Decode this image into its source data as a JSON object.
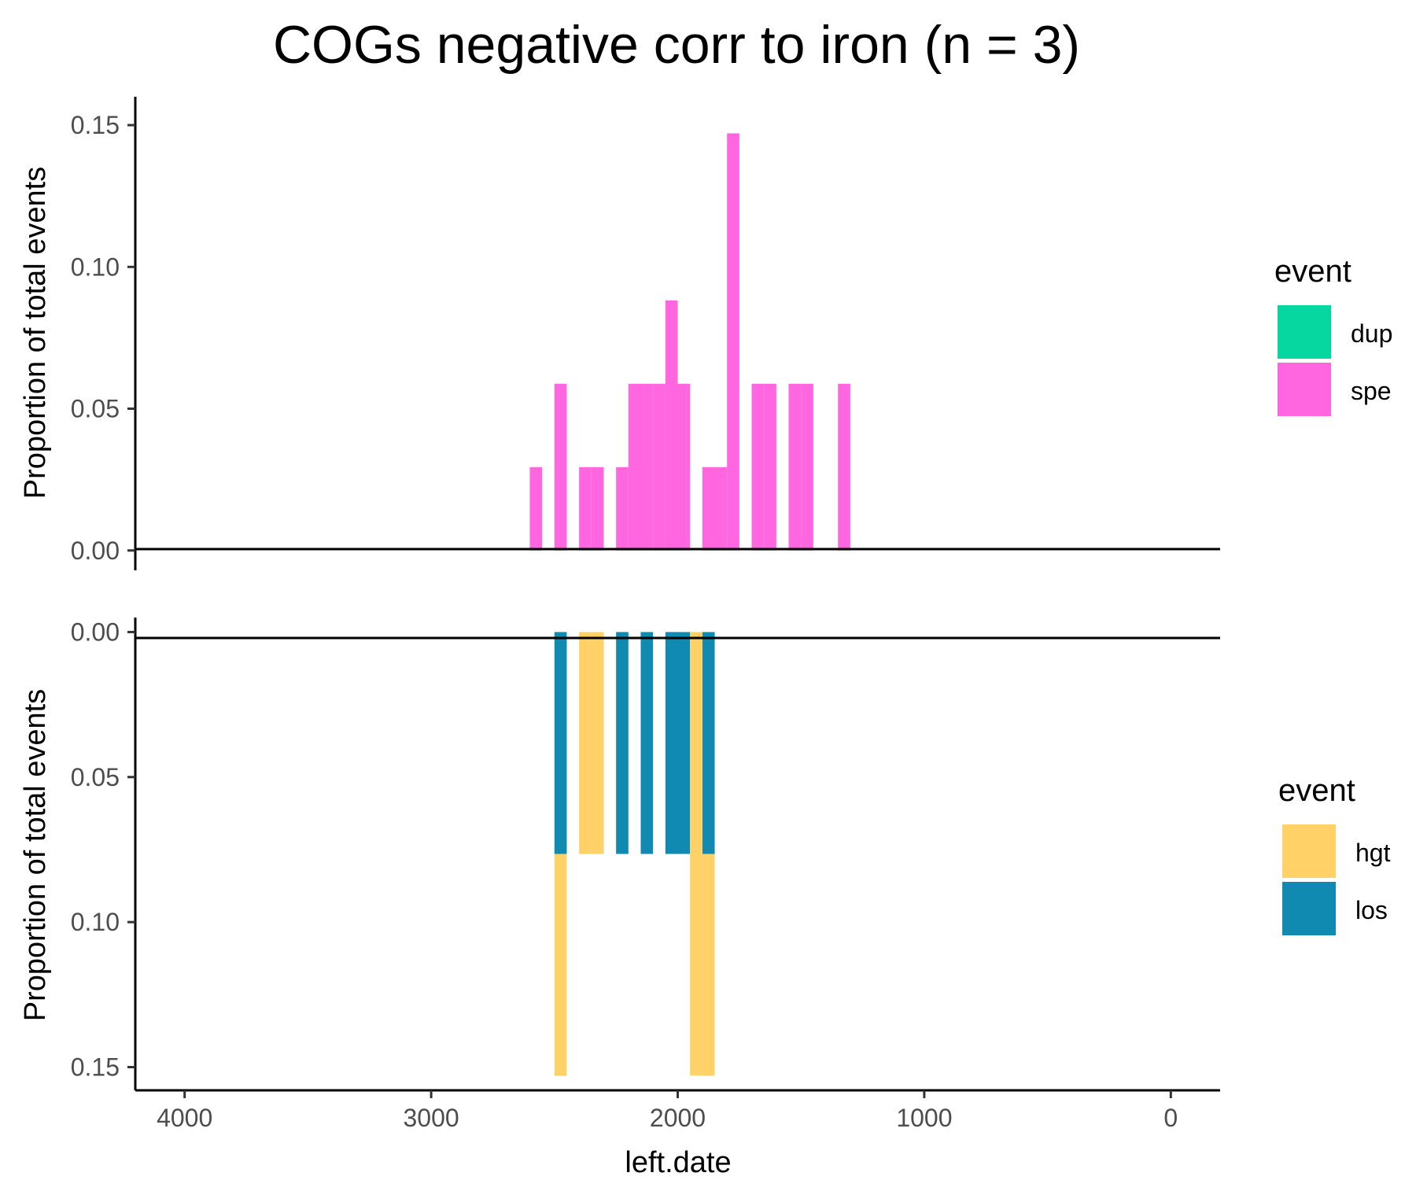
{
  "chart_data": {
    "type": "bar",
    "title": "COGs negative corr to iron (n = 3)",
    "xlabel": "left.date",
    "x_reversed": true,
    "xlim": [
      4200,
      -200
    ],
    "x_ticks": [
      4000,
      3000,
      2000,
      1000,
      0
    ],
    "x_tick_labels": [
      "4000",
      "3000",
      "2000",
      "1000",
      "0"
    ],
    "bin_width": 50,
    "panels": [
      {
        "name": "top",
        "ylabel": "Proportion of total events",
        "ylim": [
          -0.007,
          0.16
        ],
        "y_reversed": false,
        "y_ticks": [
          0,
          0.05,
          0.1,
          0.15
        ],
        "y_tick_labels": [
          "0.00",
          "0.05",
          "0.10",
          "0.15"
        ],
        "legend": {
          "title": "event",
          "entries": [
            {
              "label": "dup",
              "color": "#06d6a0"
            },
            {
              "label": "spe",
              "color": "#ff66e0"
            }
          ]
        },
        "series": [
          {
            "name": "spe",
            "color": "#ff66e0",
            "bins": [
              {
                "x": 2575,
                "value": 0.0294
              },
              {
                "x": 2475,
                "value": 0.0588
              },
              {
                "x": 2375,
                "value": 0.0294
              },
              {
                "x": 2325,
                "value": 0.0294
              },
              {
                "x": 2225,
                "value": 0.0294
              },
              {
                "x": 2175,
                "value": 0.0588
              },
              {
                "x": 2125,
                "value": 0.0588
              },
              {
                "x": 2075,
                "value": 0.0588
              },
              {
                "x": 2025,
                "value": 0.0882
              },
              {
                "x": 1975,
                "value": 0.0588
              },
              {
                "x": 1875,
                "value": 0.0294
              },
              {
                "x": 1825,
                "value": 0.0294
              },
              {
                "x": 1775,
                "value": 0.1471
              },
              {
                "x": 1675,
                "value": 0.0588
              },
              {
                "x": 1625,
                "value": 0.0588
              },
              {
                "x": 1525,
                "value": 0.0588
              },
              {
                "x": 1475,
                "value": 0.0588
              },
              {
                "x": 1325,
                "value": 0.0588
              }
            ]
          }
        ]
      },
      {
        "name": "bottom",
        "ylabel": "Proportion of total events",
        "ylim": [
          -0.005,
          0.158
        ],
        "y_reversed": true,
        "y_ticks": [
          0,
          0.05,
          0.1,
          0.15
        ],
        "y_tick_labels": [
          "0.00",
          "0.05",
          "0.10",
          "0.15"
        ],
        "legend": {
          "title": "event",
          "entries": [
            {
              "label": "hgt",
              "color": "#ffd166"
            },
            {
              "label": "los",
              "color": "#118ab2"
            }
          ]
        },
        "stacked": true,
        "series": [
          {
            "name": "los",
            "color": "#118ab2",
            "bins": [
              {
                "x": 2475,
                "value": 0.0765
              },
              {
                "x": 2225,
                "value": 0.0765
              },
              {
                "x": 2125,
                "value": 0.0765
              },
              {
                "x": 2025,
                "value": 0.0765
              },
              {
                "x": 1975,
                "value": 0.0765
              },
              {
                "x": 1875,
                "value": 0.0765
              }
            ]
          },
          {
            "name": "hgt",
            "color": "#ffd166",
            "bins": [
              {
                "x": 2475,
                "value": 0.0765
              },
              {
                "x": 2375,
                "value": 0.0765
              },
              {
                "x": 2325,
                "value": 0.0765
              },
              {
                "x": 1925,
                "value": 0.1529
              },
              {
                "x": 1875,
                "value": 0.0765
              }
            ]
          }
        ]
      }
    ]
  }
}
